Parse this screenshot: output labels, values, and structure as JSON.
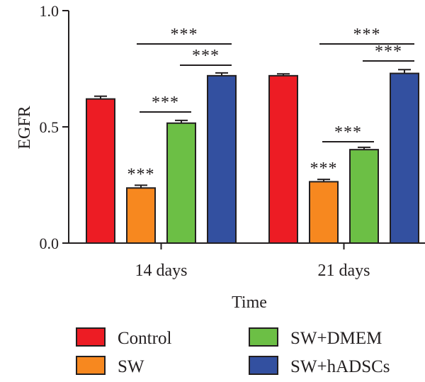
{
  "chart_data": {
    "type": "bar",
    "categories": [
      "14 days",
      "21 days"
    ],
    "series": [
      {
        "name": "Control",
        "values": [
          0.62,
          0.72
        ],
        "errors": [
          0.012,
          0.008
        ],
        "color": "#ed1c24"
      },
      {
        "name": "SW",
        "values": [
          0.237,
          0.264
        ],
        "errors": [
          0.012,
          0.01
        ],
        "color": "#f7881f"
      },
      {
        "name": "SW+DMEM",
        "values": [
          0.516,
          0.402
        ],
        "errors": [
          0.012,
          0.01
        ],
        "color": "#6cbf45"
      },
      {
        "name": "SW+hADSCs",
        "values": [
          0.72,
          0.73
        ],
        "errors": [
          0.012,
          0.016
        ],
        "color": "#3350a0"
      }
    ],
    "xlabel": "Time",
    "ylabel": "EGFR",
    "ylim": [
      0,
      1.0
    ],
    "yticks": [
      "0.0",
      "0.5",
      "1.0"
    ],
    "grid": false,
    "legend": "bottom",
    "significance": {
      "marker": "***",
      "bar_labels": [
        {
          "category": 0,
          "series": 1,
          "text": "***"
        },
        {
          "category": 1,
          "series": 1,
          "text": "***"
        }
      ],
      "brackets": [
        {
          "category": 0,
          "from_series": 2,
          "to_series": 3,
          "text": "***"
        },
        {
          "category": 0,
          "from_series": 1,
          "to_series": 2,
          "text": "***"
        },
        {
          "category": 0,
          "from_series": 1,
          "to_series": 3,
          "text": "***"
        },
        {
          "category": 1,
          "from_series": 2,
          "to_series": 3,
          "text": "***"
        },
        {
          "category": 1,
          "from_series": 1,
          "to_series": 2,
          "text": "***"
        },
        {
          "category": 1,
          "from_series": 1,
          "to_series": 3,
          "text": "***"
        }
      ]
    }
  }
}
